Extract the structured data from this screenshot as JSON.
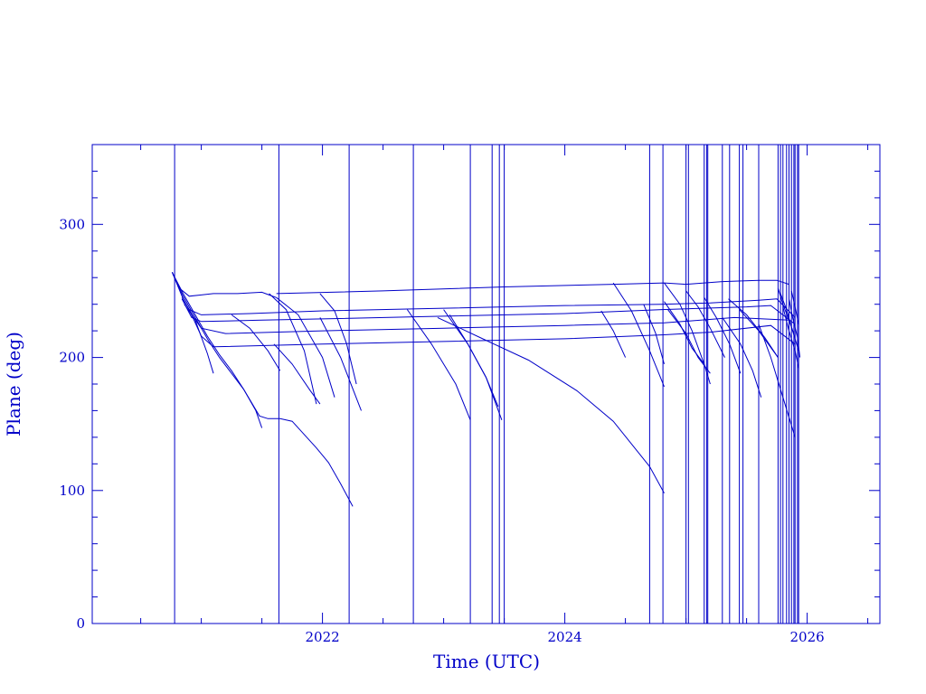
{
  "chart_data": {
    "type": "line",
    "xlabel": "Time (UTC)",
    "ylabel": "Plane (deg)",
    "xlim": [
      2020.1,
      2026.6
    ],
    "ylim": [
      0,
      360
    ],
    "x_ticks": [
      2022,
      2024,
      2026
    ],
    "y_ticks": [
      0,
      100,
      200,
      300
    ],
    "grid": false,
    "line_color": "#0000c8",
    "vertical_markers": [
      2020.78,
      2021.64,
      2022.22,
      2022.75,
      2023.22,
      2023.4,
      2023.46,
      2023.5,
      2024.7,
      2024.81,
      2025.0,
      2025.02,
      2025.15,
      2025.17,
      2025.18,
      2025.3,
      2025.36,
      2025.44,
      2025.47,
      2025.6,
      2025.76,
      2025.78,
      2025.8,
      2025.83,
      2025.85,
      2025.87,
      2025.89,
      2025.9,
      2025.92,
      2025.93
    ],
    "series": [
      {
        "x": [
          2020.76,
          2020.85,
          2020.95,
          2021.05,
          2021.15,
          2021.25,
          2021.35,
          2021.48,
          2021.55,
          2021.65,
          2021.75,
          2021.85,
          2021.95,
          2022.05,
          2022.15,
          2022.25
        ],
        "y": [
          264,
          248,
          232,
          216,
          202,
          190,
          176,
          156,
          154,
          154,
          152,
          142,
          132,
          121,
          105,
          88
        ]
      },
      {
        "x": [
          2020.76,
          2020.85,
          2020.95,
          2021.05,
          2021.15,
          2021.25,
          2021.35,
          2021.45,
          2021.5
        ],
        "y": [
          264,
          246,
          230,
          214,
          200,
          188,
          176,
          160,
          147
        ]
      },
      {
        "x": [
          2020.76,
          2020.85,
          2020.95,
          2021.05,
          2021.1
        ],
        "y": [
          264,
          244,
          228,
          203,
          188
        ]
      },
      {
        "x": [
          2020.76,
          2020.82,
          2020.9,
          2021.0,
          2021.1,
          2021.3,
          2021.5,
          2021.56,
          2021.62
        ],
        "y": [
          264,
          252,
          246,
          247,
          248,
          248,
          249,
          247,
          245
        ]
      },
      {
        "x": [
          2021.56,
          2021.7,
          2021.85,
          2021.95
        ],
        "y": [
          248,
          236,
          205,
          165
        ]
      },
      {
        "x": [
          2021.62,
          2021.8,
          2022.0,
          2022.1
        ],
        "y": [
          245,
          232,
          200,
          170
        ]
      },
      {
        "x": [
          2021.62,
          2022.5,
          2023.5,
          2024.4,
          2024.82,
          2025.0,
          2025.3,
          2025.6,
          2025.75,
          2025.85
        ],
        "y": [
          248,
          250,
          253,
          255,
          256,
          255,
          257,
          258,
          258,
          255
        ]
      },
      {
        "x": [
          2021.98,
          2022.1,
          2022.2,
          2022.28
        ],
        "y": [
          248,
          235,
          210,
          180
        ]
      },
      {
        "x": [
          2020.84,
          2020.9,
          2021.0,
          2021.4,
          2022.0,
          2023.0,
          2024.0,
          2024.8,
          2025.2,
          2025.6,
          2025.75,
          2025.9
        ],
        "y": [
          245,
          236,
          232,
          233,
          235,
          237,
          239,
          240,
          241,
          243,
          244,
          230
        ]
      },
      {
        "x": [
          2020.84,
          2020.92,
          2021.0,
          2021.5,
          2022.0,
          2023.0,
          2024.0,
          2024.8,
          2025.5,
          2025.7,
          2025.9
        ],
        "y": [
          244,
          230,
          227,
          228,
          229,
          231,
          233,
          236,
          238,
          239,
          225
        ]
      },
      {
        "x": [
          2020.86,
          2021.0,
          2021.2,
          2022.0,
          2023.0,
          2024.0,
          2024.82,
          2025.4,
          2025.85
        ],
        "y": [
          240,
          222,
          218,
          220,
          222,
          224,
          226,
          230,
          228
        ]
      },
      {
        "x": [
          2020.9,
          2021.0,
          2021.1,
          2022.0,
          2023.0,
          2024.0,
          2024.82,
          2025.2,
          2025.7,
          2025.9
        ],
        "y": [
          236,
          216,
          208,
          210,
          212,
          214,
          217,
          219,
          224,
          210
        ]
      },
      {
        "x": [
          2021.25,
          2021.4,
          2021.55,
          2021.65
        ],
        "y": [
          232,
          222,
          205,
          190
        ]
      },
      {
        "x": [
          2021.6,
          2021.75,
          2021.9,
          2021.98
        ],
        "y": [
          210,
          195,
          175,
          165
        ]
      },
      {
        "x": [
          2021.98,
          2022.15,
          2022.32
        ],
        "y": [
          230,
          200,
          160
        ]
      },
      {
        "x": [
          2022.7,
          2022.9,
          2023.1,
          2023.22
        ],
        "y": [
          236,
          210,
          180,
          153
        ]
      },
      {
        "x": [
          2023.0,
          2023.2,
          2023.35,
          2023.48
        ],
        "y": [
          236,
          210,
          185,
          153
        ]
      },
      {
        "x": [
          2023.05,
          2023.2,
          2023.35,
          2023.45
        ],
        "y": [
          232,
          210,
          185,
          163
        ]
      },
      {
        "x": [
          2022.95,
          2023.3,
          2023.7,
          2024.1,
          2024.4,
          2024.7,
          2024.82
        ],
        "y": [
          230,
          215,
          198,
          175,
          152,
          118,
          98
        ]
      },
      {
        "x": [
          2024.3,
          2024.4,
          2024.5
        ],
        "y": [
          235,
          220,
          200
        ]
      },
      {
        "x": [
          2024.4,
          2024.55,
          2024.7,
          2024.82
        ],
        "y": [
          256,
          235,
          205,
          178
        ]
      },
      {
        "x": [
          2024.65,
          2024.75,
          2024.82
        ],
        "y": [
          240,
          218,
          195
        ]
      },
      {
        "x": [
          2024.82,
          2024.95,
          2025.05,
          2025.15
        ],
        "y": [
          256,
          240,
          220,
          195
        ]
      },
      {
        "x": [
          2024.82,
          2024.95,
          2025.05,
          2025.15,
          2025.2
        ],
        "y": [
          242,
          225,
          207,
          195,
          180
        ]
      },
      {
        "x": [
          2024.85,
          2025.0,
          2025.1,
          2025.2
        ],
        "y": [
          236,
          218,
          200,
          188
        ]
      },
      {
        "x": [
          2025.0,
          2025.1,
          2025.2,
          2025.32
        ],
        "y": [
          250,
          238,
          222,
          200
        ]
      },
      {
        "x": [
          2025.15,
          2025.25,
          2025.36,
          2025.45
        ],
        "y": [
          245,
          230,
          210,
          188
        ]
      },
      {
        "x": [
          2025.3,
          2025.45,
          2025.55,
          2025.62
        ],
        "y": [
          230,
          210,
          190,
          170
        ]
      },
      {
        "x": [
          2025.35,
          2025.5,
          2025.65,
          2025.76
        ],
        "y": [
          244,
          232,
          215,
          200
        ]
      },
      {
        "x": [
          2025.44,
          2025.6,
          2025.76
        ],
        "y": [
          236,
          220,
          200
        ]
      },
      {
        "x": [
          2025.6,
          2025.7,
          2025.8,
          2025.9
        ],
        "y": [
          225,
          200,
          170,
          140
        ]
      },
      {
        "x": [
          2025.76,
          2025.8,
          2025.85,
          2025.9
        ],
        "y": [
          252,
          240,
          228,
          215
        ]
      },
      {
        "x": [
          2025.78,
          2025.83,
          2025.88,
          2025.93
        ],
        "y": [
          248,
          236,
          220,
          205
        ]
      },
      {
        "x": [
          2025.8,
          2025.85,
          2025.9,
          2025.93
        ],
        "y": [
          238,
          220,
          205,
          192
        ]
      },
      {
        "x": [
          2025.85,
          2025.88,
          2025.92,
          2025.94
        ],
        "y": [
          244,
          230,
          215,
          200
        ]
      },
      {
        "x": [
          2025.87,
          2025.9,
          2025.93
        ],
        "y": [
          250,
          238,
          225
        ]
      }
    ]
  }
}
